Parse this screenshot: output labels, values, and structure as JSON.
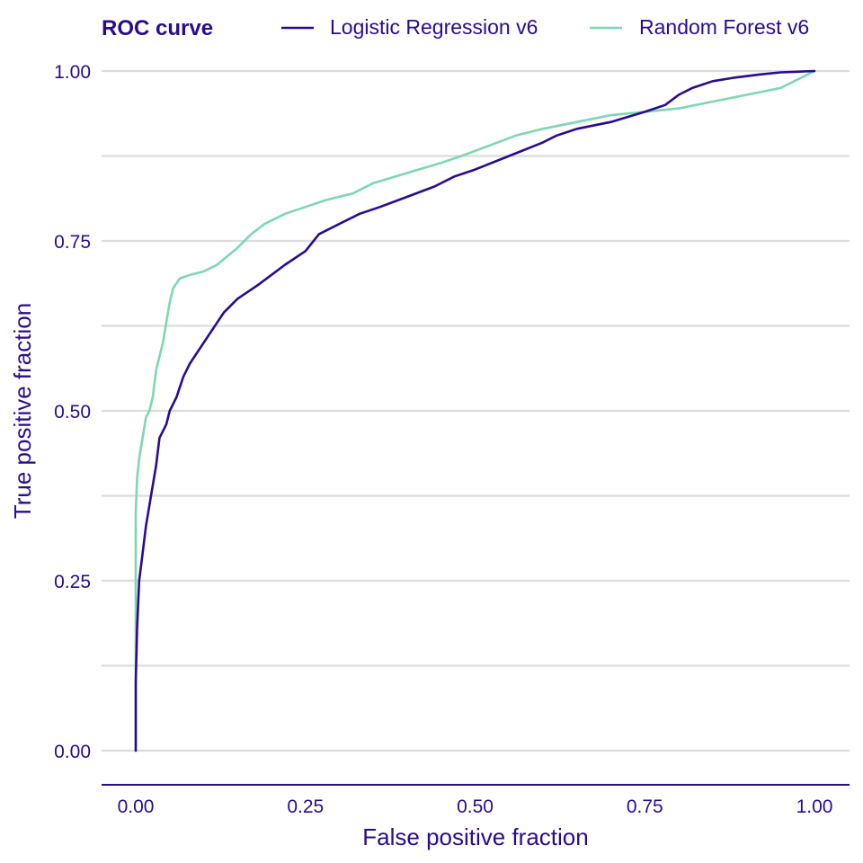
{
  "colors": {
    "primary": "#2a0b8f",
    "secondary": "#7fd6b2",
    "grid": "#dcdcdc",
    "background": "#ffffff"
  },
  "chart_data": {
    "type": "line",
    "title": "ROC curve",
    "xlabel": "False positive fraction",
    "ylabel": "True positive fraction",
    "xlim": [
      0,
      1
    ],
    "ylim": [
      0,
      1
    ],
    "x_ticks": [
      "0.00",
      "0.25",
      "0.50",
      "0.75",
      "1.00"
    ],
    "y_ticks": [
      "0.00",
      "0.25",
      "0.50",
      "0.75",
      "1.00"
    ],
    "grid": "horizontal",
    "legend_position": "top",
    "series": [
      {
        "name": "Logistic Regression v6",
        "color": "#2a0b8f",
        "points": [
          [
            0,
            0
          ],
          [
            0,
            0.1
          ],
          [
            0.002,
            0.18
          ],
          [
            0.005,
            0.25
          ],
          [
            0.01,
            0.29
          ],
          [
            0.015,
            0.33
          ],
          [
            0.02,
            0.36
          ],
          [
            0.03,
            0.42
          ],
          [
            0.035,
            0.46
          ],
          [
            0.045,
            0.48
          ],
          [
            0.05,
            0.5
          ],
          [
            0.06,
            0.52
          ],
          [
            0.07,
            0.55
          ],
          [
            0.08,
            0.57
          ],
          [
            0.1,
            0.6
          ],
          [
            0.12,
            0.63
          ],
          [
            0.13,
            0.645
          ],
          [
            0.15,
            0.665
          ],
          [
            0.18,
            0.685
          ],
          [
            0.2,
            0.7
          ],
          [
            0.22,
            0.715
          ],
          [
            0.25,
            0.735
          ],
          [
            0.27,
            0.76
          ],
          [
            0.3,
            0.775
          ],
          [
            0.33,
            0.79
          ],
          [
            0.36,
            0.8
          ],
          [
            0.4,
            0.815
          ],
          [
            0.44,
            0.83
          ],
          [
            0.47,
            0.845
          ],
          [
            0.5,
            0.855
          ],
          [
            0.55,
            0.875
          ],
          [
            0.6,
            0.895
          ],
          [
            0.62,
            0.905
          ],
          [
            0.65,
            0.915
          ],
          [
            0.7,
            0.925
          ],
          [
            0.75,
            0.94
          ],
          [
            0.78,
            0.95
          ],
          [
            0.8,
            0.965
          ],
          [
            0.82,
            0.975
          ],
          [
            0.85,
            0.985
          ],
          [
            0.88,
            0.99
          ],
          [
            0.92,
            0.995
          ],
          [
            0.95,
            0.998
          ],
          [
            1,
            1
          ]
        ]
      },
      {
        "name": "Random Forest v6",
        "color": "#7fd6b2",
        "points": [
          [
            0,
            0
          ],
          [
            0,
            0.35
          ],
          [
            0.002,
            0.4
          ],
          [
            0.005,
            0.43
          ],
          [
            0.01,
            0.46
          ],
          [
            0.015,
            0.49
          ],
          [
            0.02,
            0.5
          ],
          [
            0.025,
            0.52
          ],
          [
            0.03,
            0.56
          ],
          [
            0.035,
            0.58
          ],
          [
            0.04,
            0.6
          ],
          [
            0.045,
            0.63
          ],
          [
            0.05,
            0.66
          ],
          [
            0.055,
            0.68
          ],
          [
            0.065,
            0.695
          ],
          [
            0.08,
            0.7
          ],
          [
            0.1,
            0.705
          ],
          [
            0.12,
            0.715
          ],
          [
            0.15,
            0.74
          ],
          [
            0.17,
            0.76
          ],
          [
            0.19,
            0.775
          ],
          [
            0.22,
            0.79
          ],
          [
            0.25,
            0.8
          ],
          [
            0.28,
            0.81
          ],
          [
            0.32,
            0.82
          ],
          [
            0.35,
            0.835
          ],
          [
            0.4,
            0.85
          ],
          [
            0.45,
            0.865
          ],
          [
            0.48,
            0.875
          ],
          [
            0.52,
            0.89
          ],
          [
            0.56,
            0.905
          ],
          [
            0.6,
            0.915
          ],
          [
            0.65,
            0.925
          ],
          [
            0.7,
            0.935
          ],
          [
            0.75,
            0.94
          ],
          [
            0.8,
            0.945
          ],
          [
            0.85,
            0.955
          ],
          [
            0.9,
            0.965
          ],
          [
            0.95,
            0.975
          ],
          [
            1,
            1
          ]
        ]
      }
    ]
  }
}
